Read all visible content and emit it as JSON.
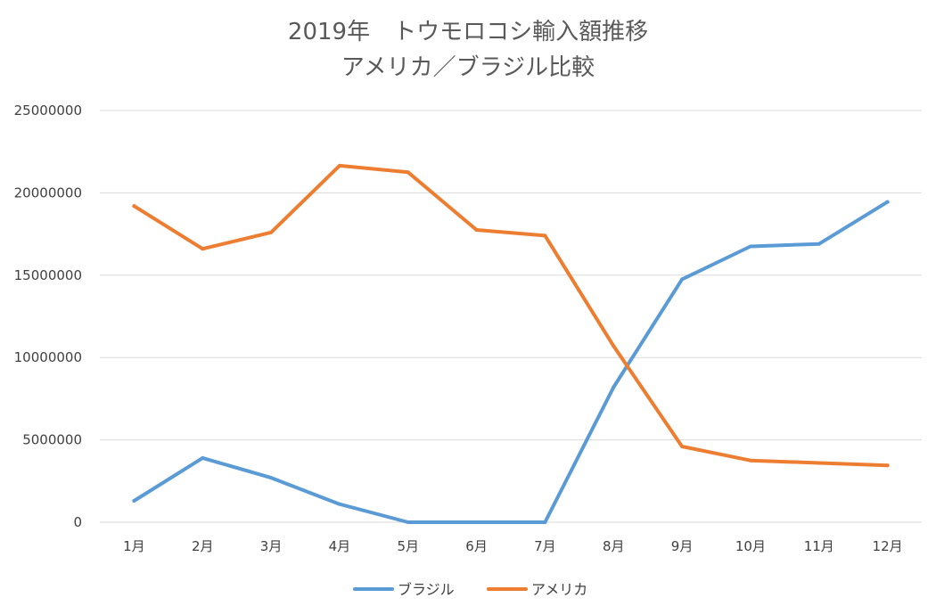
{
  "chart_data": {
    "type": "line",
    "title": [
      "2019年　トウモロコシ輸入額推移",
      "アメリカ／ブラジル比較"
    ],
    "categories": [
      "1月",
      "2月",
      "3月",
      "4月",
      "5月",
      "6月",
      "7月",
      "8月",
      "9月",
      "10月",
      "11月",
      "12月"
    ],
    "y_tick_labels": [
      "0",
      "5000000",
      "10000000",
      "15000000",
      "20000000",
      "25000000"
    ],
    "ylim": [
      0,
      25000000
    ],
    "grid": true,
    "legend_position": "bottom",
    "series": [
      {
        "name": "ブラジル",
        "color": "#5b9bd5",
        "values": [
          1300000,
          3900000,
          2700000,
          1100000,
          0,
          0,
          0,
          8200000,
          14750000,
          16750000,
          16900000,
          19450000
        ]
      },
      {
        "name": "アメリカ",
        "color": "#ed7d31",
        "values": [
          19200000,
          16600000,
          17600000,
          21650000,
          21250000,
          17750000,
          17400000,
          10700000,
          4600000,
          3750000,
          3600000,
          3450000
        ]
      }
    ]
  }
}
